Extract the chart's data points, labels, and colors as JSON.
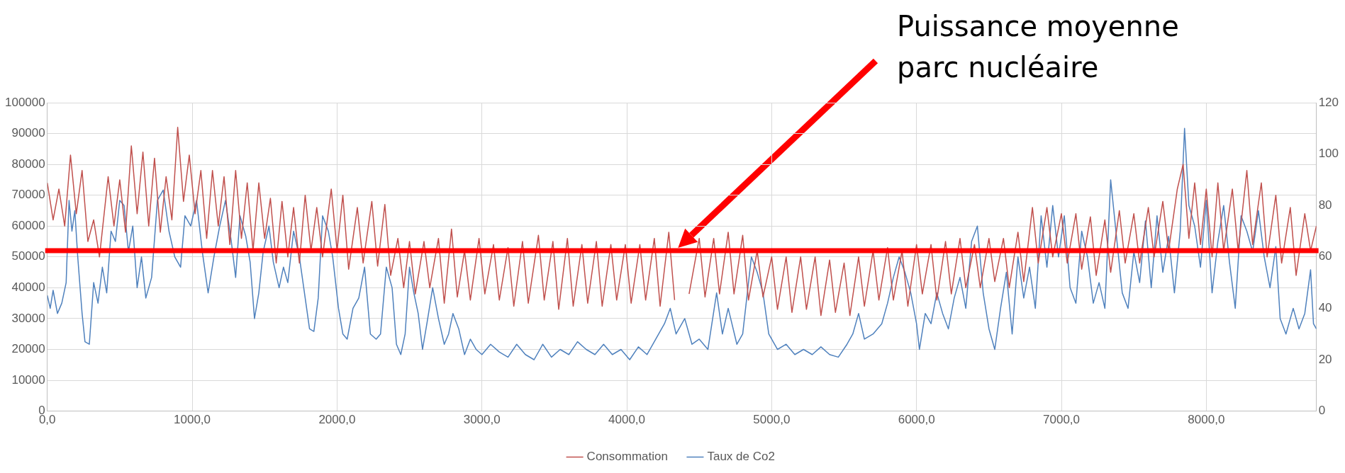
{
  "chart_data": {
    "type": "line",
    "xlim": [
      0,
      8760
    ],
    "xticks": [
      {
        "value": 0,
        "label": "0,0"
      },
      {
        "value": 1000,
        "label": "1000,0"
      },
      {
        "value": 2000,
        "label": "2000,0"
      },
      {
        "value": 3000,
        "label": "3000,0"
      },
      {
        "value": 4000,
        "label": "4000,0"
      },
      {
        "value": 5000,
        "label": "5000,0"
      },
      {
        "value": 6000,
        "label": "6000,0"
      },
      {
        "value": 7000,
        "label": "7000,0"
      },
      {
        "value": 8000,
        "label": "8000,0"
      }
    ],
    "ylim": [
      0,
      100000
    ],
    "yticks": [
      0,
      10000,
      20000,
      30000,
      40000,
      50000,
      60000,
      70000,
      80000,
      90000,
      100000
    ],
    "y2lim": [
      0,
      120
    ],
    "y2ticks": [
      0,
      20,
      40,
      60,
      80,
      100,
      120
    ],
    "grid": true,
    "legend": "bottom",
    "marker": "none",
    "line_style": "solid",
    "series": [
      {
        "name": "Consommation",
        "color": "#c0504d",
        "x": [
          0,
          40,
          80,
          120,
          160,
          200,
          240,
          280,
          320,
          360,
          420,
          460,
          500,
          540,
          580,
          620,
          660,
          700,
          740,
          780,
          820,
          860,
          900,
          940,
          980,
          1020,
          1060,
          1100,
          1140,
          1180,
          1220,
          1260,
          1300,
          1340,
          1380,
          1420,
          1460,
          1500,
          1540,
          1580,
          1620,
          1660,
          1700,
          1740,
          1780,
          1820,
          1860,
          1900,
          1960,
          2000,
          2040,
          2080,
          2140,
          2180,
          2240,
          2280,
          2330,
          2370,
          2420,
          2460,
          2500,
          2540,
          2600,
          2640,
          2700,
          2740,
          2790,
          2830,
          2880,
          2920,
          2980,
          3020,
          3080,
          3120,
          3180,
          3220,
          3280,
          3320,
          3390,
          3430,
          3490,
          3530,
          3590,
          3630,
          3690,
          3730,
          3790,
          3830,
          3890,
          3930,
          3990,
          4030,
          4090,
          4130,
          4190,
          4230,
          4290,
          4330,
          4390,
          4430,
          4500,
          4540,
          4600,
          4640,
          4700,
          4740,
          4800,
          4840,
          4900,
          4940,
          5000,
          5040,
          5100,
          5140,
          5200,
          5240,
          5300,
          5340,
          5400,
          5440,
          5500,
          5540,
          5600,
          5640,
          5700,
          5740,
          5800,
          5840,
          5900,
          5940,
          6000,
          6040,
          6100,
          6140,
          6200,
          6240,
          6300,
          6340,
          6400,
          6440,
          6500,
          6540,
          6600,
          6640,
          6700,
          6740,
          6800,
          6840,
          6900,
          6940,
          7000,
          7040,
          7100,
          7140,
          7200,
          7240,
          7300,
          7340,
          7400,
          7440,
          7500,
          7540,
          7600,
          7640,
          7700,
          7740,
          7800,
          7840,
          7880,
          7920,
          7960,
          8000,
          8040,
          8080,
          8120,
          8180,
          8220,
          8280,
          8320,
          8380,
          8420,
          8480,
          8520,
          8580,
          8620,
          8680,
          8720,
          8760
        ],
        "values": [
          74000,
          62000,
          72000,
          60000,
          83000,
          64000,
          78000,
          55000,
          62000,
          50000,
          76000,
          60000,
          75000,
          58000,
          86000,
          64000,
          84000,
          60000,
          82000,
          58000,
          76000,
          62000,
          92000,
          68000,
          83000,
          64000,
          78000,
          56000,
          78000,
          60000,
          76000,
          54000,
          78000,
          56000,
          74000,
          52000,
          74000,
          56000,
          69000,
          48000,
          68000,
          50000,
          66000,
          48000,
          70000,
          52000,
          66000,
          50000,
          72000,
          52000,
          70000,
          46000,
          66000,
          48000,
          68000,
          47000,
          67000,
          44000,
          56000,
          40000,
          55000,
          38000,
          55000,
          40000,
          56000,
          35000,
          59000,
          37000,
          52000,
          36000,
          56000,
          38000,
          54000,
          36000,
          53000,
          34000,
          55000,
          35000,
          57000,
          36000,
          55000,
          33000,
          56000,
          34000,
          54000,
          35000,
          55000,
          34000,
          54000,
          36000,
          54000,
          35000,
          54000,
          36000,
          56000,
          34000,
          58000,
          36000,
          null,
          38000,
          56000,
          37000,
          56000,
          38000,
          58000,
          38000,
          57000,
          36000,
          52000,
          37000,
          50000,
          33000,
          50000,
          32000,
          50000,
          33000,
          50000,
          31000,
          49000,
          32000,
          48000,
          31000,
          50000,
          34000,
          52000,
          36000,
          53000,
          36000,
          52000,
          34000,
          54000,
          38000,
          54000,
          36000,
          55000,
          38000,
          56000,
          40000,
          54000,
          40000,
          56000,
          42000,
          56000,
          40000,
          58000,
          42000,
          66000,
          48000,
          66000,
          50000,
          64000,
          48000,
          64000,
          46000,
          63000,
          44000,
          62000,
          45000,
          65000,
          48000,
          64000,
          48000,
          66000,
          50000,
          68000,
          52000,
          72000,
          80000,
          56000,
          74000,
          54000,
          72000,
          50000,
          74000,
          52000,
          72000,
          52000,
          78000,
          54000,
          74000,
          50000,
          70000,
          48000,
          66000,
          44000,
          64000,
          52000,
          60000
        ]
      },
      {
        "name": "Taux de Co2",
        "color": "#4f81bd",
        "axis": "y2",
        "x": [
          0,
          20,
          40,
          70,
          100,
          130,
          150,
          170,
          190,
          210,
          240,
          260,
          290,
          320,
          350,
          380,
          410,
          440,
          470,
          500,
          530,
          560,
          590,
          620,
          650,
          680,
          720,
          760,
          800,
          840,
          880,
          920,
          950,
          990,
          1030,
          1070,
          1110,
          1150,
          1190,
          1230,
          1270,
          1300,
          1330,
          1370,
          1400,
          1430,
          1460,
          1490,
          1530,
          1560,
          1600,
          1630,
          1660,
          1700,
          1740,
          1780,
          1810,
          1840,
          1870,
          1900,
          1940,
          1970,
          2010,
          2040,
          2070,
          2110,
          2150,
          2190,
          2230,
          2270,
          2300,
          2340,
          2380,
          2410,
          2440,
          2470,
          2500,
          2530,
          2560,
          2590,
          2620,
          2660,
          2700,
          2740,
          2770,
          2800,
          2840,
          2880,
          2920,
          2960,
          3000,
          3060,
          3120,
          3180,
          3240,
          3300,
          3360,
          3420,
          3480,
          3540,
          3600,
          3660,
          3720,
          3780,
          3840,
          3900,
          3960,
          4020,
          4080,
          4140,
          4200,
          4260,
          4300,
          4340,
          4400,
          4450,
          4500,
          4560,
          4620,
          4660,
          4700,
          4760,
          4800,
          4860,
          4900,
          4940,
          4980,
          5040,
          5100,
          5160,
          5220,
          5280,
          5340,
          5400,
          5460,
          5520,
          5560,
          5600,
          5640,
          5700,
          5760,
          5800,
          5840,
          5880,
          5920,
          5960,
          6000,
          6020,
          6060,
          6100,
          6140,
          6180,
          6220,
          6260,
          6300,
          6340,
          6380,
          6420,
          6460,
          6500,
          6540,
          6580,
          6620,
          6660,
          6700,
          6740,
          6780,
          6820,
          6860,
          6900,
          6940,
          6980,
          7020,
          7060,
          7100,
          7140,
          7180,
          7220,
          7260,
          7300,
          7340,
          7380,
          7420,
          7460,
          7500,
          7540,
          7580,
          7620,
          7660,
          7700,
          7740,
          7780,
          7820,
          7850,
          7880,
          7920,
          7960,
          8000,
          8040,
          8080,
          8120,
          8160,
          8200,
          8240,
          8280,
          8320,
          8360,
          8400,
          8440,
          8480,
          8510,
          8550,
          8600,
          8640,
          8680,
          8720,
          8740,
          8760
        ],
        "values": [
          45,
          40,
          47,
          38,
          42,
          50,
          82,
          70,
          78,
          60,
          38,
          27,
          26,
          50,
          42,
          56,
          46,
          70,
          66,
          82,
          80,
          62,
          72,
          48,
          60,
          44,
          52,
          82,
          86,
          70,
          60,
          56,
          76,
          72,
          82,
          62,
          46,
          60,
          72,
          82,
          66,
          52,
          76,
          68,
          58,
          36,
          46,
          62,
          72,
          58,
          48,
          56,
          50,
          70,
          60,
          44,
          32,
          31,
          44,
          76,
          70,
          60,
          40,
          30,
          28,
          40,
          44,
          56,
          30,
          28,
          30,
          56,
          48,
          26,
          22,
          30,
          56,
          46,
          38,
          24,
          34,
          48,
          36,
          26,
          30,
          38,
          32,
          22,
          28,
          24,
          22,
          26,
          23,
          21,
          26,
          22,
          20,
          26,
          21,
          24,
          22,
          27,
          24,
          22,
          26,
          22,
          24,
          20,
          25,
          22,
          28,
          34,
          40,
          30,
          36,
          26,
          28,
          24,
          46,
          30,
          40,
          26,
          30,
          60,
          54,
          46,
          30,
          24,
          26,
          22,
          24,
          22,
          25,
          22,
          21,
          26,
          30,
          38,
          28,
          30,
          34,
          42,
          52,
          60,
          54,
          46,
          34,
          24,
          38,
          34,
          46,
          38,
          32,
          44,
          52,
          40,
          66,
          72,
          46,
          32,
          24,
          40,
          54,
          30,
          60,
          44,
          56,
          40,
          76,
          56,
          80,
          60,
          76,
          48,
          42,
          70,
          60,
          42,
          50,
          40,
          90,
          68,
          46,
          40,
          62,
          50,
          74,
          48,
          76,
          54,
          68,
          46,
          70,
          110,
          80,
          72,
          56,
          82,
          46,
          66,
          80,
          58,
          40,
          76,
          70,
          62,
          78,
          60,
          48,
          64,
          36,
          30,
          40,
          32,
          38,
          55,
          34,
          32
        ]
      }
    ],
    "ref_lines": [
      {
        "axis": "y",
        "value": 52000,
        "color": "#ff0000"
      }
    ],
    "annotations": [
      "Puissance moyenne parc nucléaire"
    ]
  }
}
